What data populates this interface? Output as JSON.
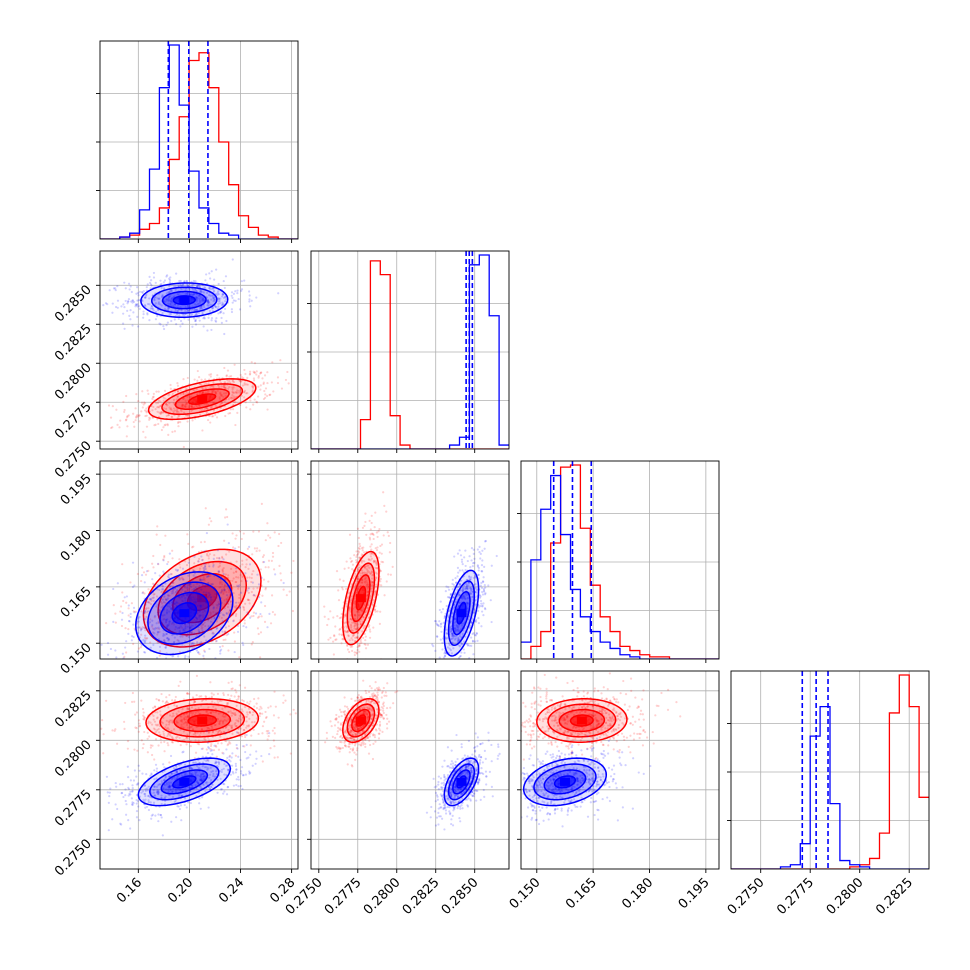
{
  "chart_data": {
    "type": "corner",
    "title": "",
    "series": [
      {
        "name": "",
        "color": "#ff0000"
      },
      {
        "name": "",
        "color": "#0000ff"
      }
    ],
    "parameters": [
      {
        "range": [
          0.13,
          0.285
        ],
        "ticks": [
          0.16,
          0.2,
          0.24,
          0.28
        ],
        "tick_labels": [
          "0.16",
          "0.20",
          "0.24",
          "0.28"
        ]
      },
      {
        "range": [
          0.2745,
          0.2872
        ],
        "ticks": [
          0.275,
          0.2775,
          0.28,
          0.2825,
          0.285
        ],
        "tick_labels": [
          "0.2750",
          "0.2775",
          "0.2800",
          "0.2825",
          "0.2850"
        ]
      },
      {
        "range": [
          0.1458,
          0.1985
        ],
        "ticks": [
          0.15,
          0.165,
          0.18,
          0.195
        ],
        "tick_labels": [
          "0.150",
          "0.165",
          "0.180",
          "0.195"
        ]
      },
      {
        "range": [
          0.2735,
          0.2835
        ],
        "ticks": [
          0.275,
          0.2775,
          0.28,
          0.2825
        ],
        "tick_labels": [
          "0.2750",
          "0.2775",
          "0.2800",
          "0.2825"
        ]
      }
    ],
    "histograms": {
      "bin_width": [
        0.00775,
        0.000635,
        0.002635,
        0.0005
      ],
      "red": [
        [
          0,
          0,
          0.01,
          0.02,
          0.05,
          0.08,
          0.16,
          0.41,
          0.63,
          0.92,
          0.96,
          0.78,
          0.5,
          0.28,
          0.12,
          0.06,
          0.02,
          0.01,
          0,
          0
        ],
        [
          0,
          0,
          0,
          0,
          0,
          0.15,
          0.96,
          0.89,
          0.17,
          0.02,
          0,
          0,
          0,
          0,
          0,
          0,
          0,
          0,
          0,
          0
        ],
        [
          0,
          0.06,
          0.13,
          0.55,
          0.91,
          0.92,
          0.62,
          0.35,
          0.2,
          0.13,
          0.06,
          0.04,
          0.02,
          0.01,
          0.01,
          0,
          0,
          0,
          0,
          0
        ],
        [
          0,
          0,
          0,
          0,
          0,
          0,
          0,
          0,
          0,
          0,
          0,
          0,
          0.01,
          0.02,
          0.05,
          0.17,
          0.74,
          0.92,
          0.77,
          0.34
        ]
      ],
      "blue": [
        [
          0,
          0,
          0.01,
          0.03,
          0.15,
          0.36,
          0.78,
          1.0,
          0.69,
          0.35,
          0.16,
          0.08,
          0.03,
          0.02,
          0,
          0,
          0,
          0,
          0,
          0
        ],
        [
          0,
          0,
          0,
          0,
          0,
          0,
          0,
          0,
          0,
          0,
          0,
          0,
          0,
          0,
          0.02,
          0.06,
          0.94,
          0.99,
          0.68,
          0.02
        ],
        [
          0.08,
          0.47,
          0.71,
          0.87,
          0.59,
          0.33,
          0.2,
          0.13,
          0.08,
          0.05,
          0.02,
          0.01,
          0,
          0,
          0,
          0,
          0,
          0,
          0,
          0
        ],
        [
          0,
          0,
          0,
          0,
          0,
          0.01,
          0.02,
          0.12,
          0.63,
          0.77,
          0.31,
          0.04,
          0.02,
          0.01,
          0,
          0,
          0,
          0,
          0,
          0
        ]
      ]
    },
    "quantiles_blue": [
      [
        0.1835,
        0.1995,
        0.2145
      ],
      [
        0.28445,
        0.28465,
        0.28485
      ],
      [
        0.1545,
        0.1595,
        0.1645
      ],
      [
        0.2771,
        0.2778,
        0.2784
      ]
    ],
    "pairs": [
      {
        "row": 1,
        "col": 0,
        "red": {
          "center": [
            0.21,
            0.2777
          ],
          "sd": [
            0.021,
            0.00065
          ],
          "corr": 0.55
        },
        "blue": {
          "center": [
            0.196,
            0.28405
          ],
          "sd": [
            0.017,
            0.00055
          ],
          "corr": 0.05
        }
      },
      {
        "row": 2,
        "col": 0,
        "red": {
          "center": [
            0.21,
            0.162
          ],
          "sd": [
            0.023,
            0.0065
          ],
          "corr": 0.35
        },
        "blue": {
          "center": [
            0.196,
            0.158
          ],
          "sd": [
            0.019,
            0.0055
          ],
          "corr": 0.3
        }
      },
      {
        "row": 2,
        "col": 1,
        "red": {
          "center": [
            0.2777,
            0.162
          ],
          "sd": [
            0.00058,
            0.0062
          ],
          "corr": 0.55
        },
        "blue": {
          "center": [
            0.28415,
            0.158
          ],
          "sd": [
            0.00055,
            0.0057
          ],
          "corr": 0.55
        }
      },
      {
        "row": 3,
        "col": 0,
        "red": {
          "center": [
            0.21,
            0.281
          ],
          "sd": [
            0.022,
            0.00055
          ],
          "corr": 0.1
        },
        "blue": {
          "center": [
            0.196,
            0.2779
          ],
          "sd": [
            0.018,
            0.0006
          ],
          "corr": 0.55
        }
      },
      {
        "row": 3,
        "col": 1,
        "red": {
          "center": [
            0.2777,
            0.281
          ],
          "sd": [
            0.00058,
            0.00055
          ],
          "corr": 0.45
        },
        "blue": {
          "center": [
            0.28415,
            0.2779
          ],
          "sd": [
            0.00055,
            0.0006
          ],
          "corr": 0.55
        }
      },
      {
        "row": 3,
        "col": 2,
        "red": {
          "center": [
            0.162,
            0.281
          ],
          "sd": [
            0.006,
            0.00055
          ],
          "corr": 0.05
        },
        "blue": {
          "center": [
            0.1575,
            0.2779
          ],
          "sd": [
            0.0055,
            0.0006
          ],
          "corr": 0.3
        }
      }
    ],
    "grid": true,
    "legend": "none"
  }
}
